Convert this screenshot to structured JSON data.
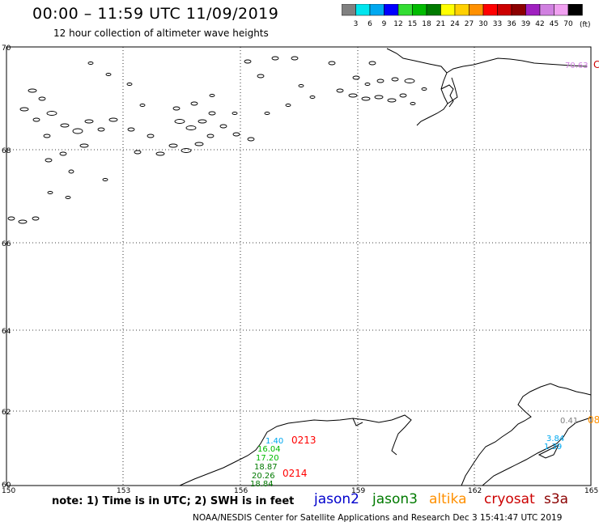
{
  "title": "00:00 – 11:59 UTC 11/09/2019",
  "subtitle": "12 hour collection of altimeter wave heights",
  "colorbar": {
    "levels": [
      "3",
      "6",
      "9",
      "12",
      "15",
      "18",
      "21",
      "24",
      "27",
      "30",
      "33",
      "36",
      "39",
      "42",
      "45",
      "70"
    ],
    "unit": "(ft)",
    "colors": [
      "#808080",
      "#00e5ee",
      "#00a8f0",
      "#0000ff",
      "#33dd33",
      "#00bb00",
      "#007a00",
      "#ffff00",
      "#ffd000",
      "#ff9000",
      "#ff0000",
      "#cc0000",
      "#8b0000",
      "#a020c0",
      "#d080e0",
      "#f0a0f0",
      "#000000"
    ]
  },
  "lat_labels": [
    "70",
    "68",
    "66",
    "64",
    "62",
    "60"
  ],
  "lon_labels": [
    "150",
    "153",
    "156",
    "159",
    "162",
    "165"
  ],
  "map_labels": {
    "top_right": "70.63",
    "c1": "1.40",
    "c2": "16.04",
    "c3": "17.20",
    "c4": "18.87",
    "c5": "20.26",
    "c6": "18.84",
    "pass1": "0213",
    "pass2": "0214",
    "r1": "0.41",
    "r2": "08",
    "r3": "3.84",
    "r4": "1.39",
    "edge_right": "C"
  },
  "note": "note: 1) Time is in UTC; 2) SWH is in feet",
  "satellites": [
    {
      "name": "jason2",
      "color": "#0000cc"
    },
    {
      "name": "jason3",
      "color": "#007a00"
    },
    {
      "name": "altika",
      "color": "#ff9000"
    },
    {
      "name": "cryosat",
      "color": "#cc0000"
    },
    {
      "name": "s3a",
      "color": "#8b0000"
    }
  ],
  "credit": "NOAA/NESDIS Center for Satellite Applications and Research    Dec  3 15:41:47 UTC 2019"
}
